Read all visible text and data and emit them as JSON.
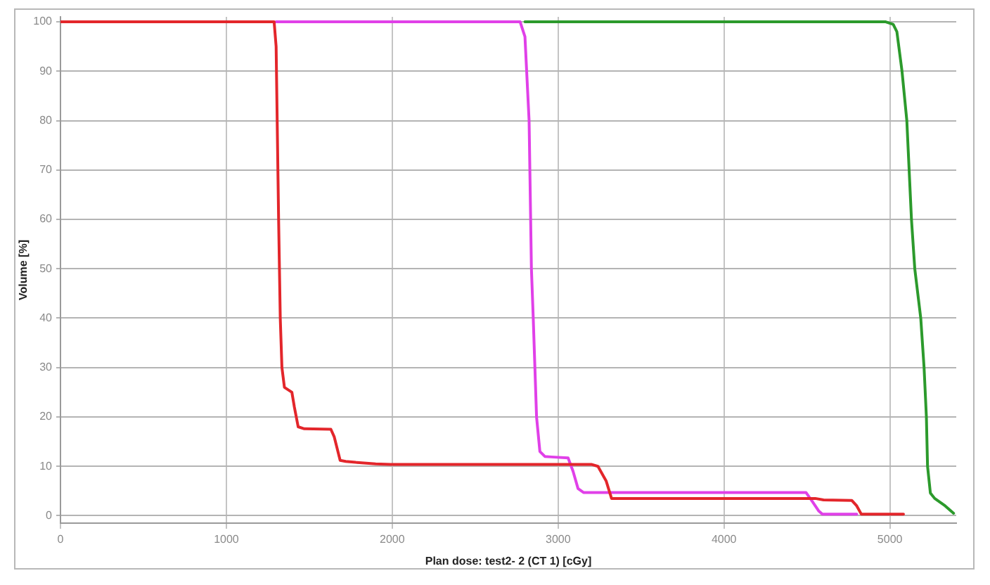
{
  "chart_data": {
    "type": "line",
    "xlabel": "Plan dose: test2- 2 (CT 1) [cGy]",
    "ylabel": "Volume [%]",
    "xlim": [
      0,
      5400
    ],
    "ylim": [
      -1.5,
      101
    ],
    "xticks": [
      0,
      1000,
      2000,
      3000,
      4000,
      5000
    ],
    "yticks": [
      0,
      10,
      20,
      30,
      40,
      50,
      60,
      70,
      80,
      90,
      100
    ],
    "grid": true,
    "series": [
      {
        "color": "#e3262b",
        "x": [
          0,
          1288,
          1300,
          1315,
          1325,
          1335,
          1350,
          1395,
          1410,
          1433,
          1470,
          1630,
          1650,
          1686,
          1720,
          1780,
          1900,
          1990,
          2500,
          3200,
          3240,
          3290,
          3322,
          3400,
          4550,
          4600,
          4770,
          4800,
          4828,
          5082
        ],
        "values": [
          100,
          100,
          95,
          60,
          40,
          30,
          26,
          25,
          22,
          18,
          17.6,
          17.5,
          16,
          11.2,
          11,
          10.8,
          10.5,
          10.4,
          10.4,
          10.4,
          10,
          7,
          3.5,
          3.5,
          3.5,
          3.2,
          3.1,
          2,
          0.3,
          0.3
        ]
      },
      {
        "color": "#e040e8",
        "x": [
          1300,
          2771,
          2800,
          2825,
          2839,
          2850,
          2870,
          2890,
          2920,
          2960,
          3060,
          3090,
          3120,
          3153,
          3200,
          4494,
          4530,
          4570,
          4593,
          4800
        ],
        "values": [
          100,
          100,
          97,
          80,
          50,
          40,
          20,
          13,
          12,
          11.9,
          11.7,
          9,
          5.5,
          4.7,
          4.7,
          4.7,
          3,
          1,
          0.3,
          0.3
        ]
      },
      {
        "color": "#2c9a2c",
        "x": [
          2800,
          4975,
          5020,
          5042,
          5073,
          5102,
          5130,
          5150,
          5186,
          5206,
          5220,
          5227,
          5244,
          5270,
          5291,
          5333,
          5384
        ],
        "values": [
          100,
          100,
          99.5,
          98,
          90,
          80,
          60,
          50,
          40,
          30,
          20,
          10,
          4.6,
          3.5,
          3,
          2,
          0.5
        ]
      }
    ]
  }
}
